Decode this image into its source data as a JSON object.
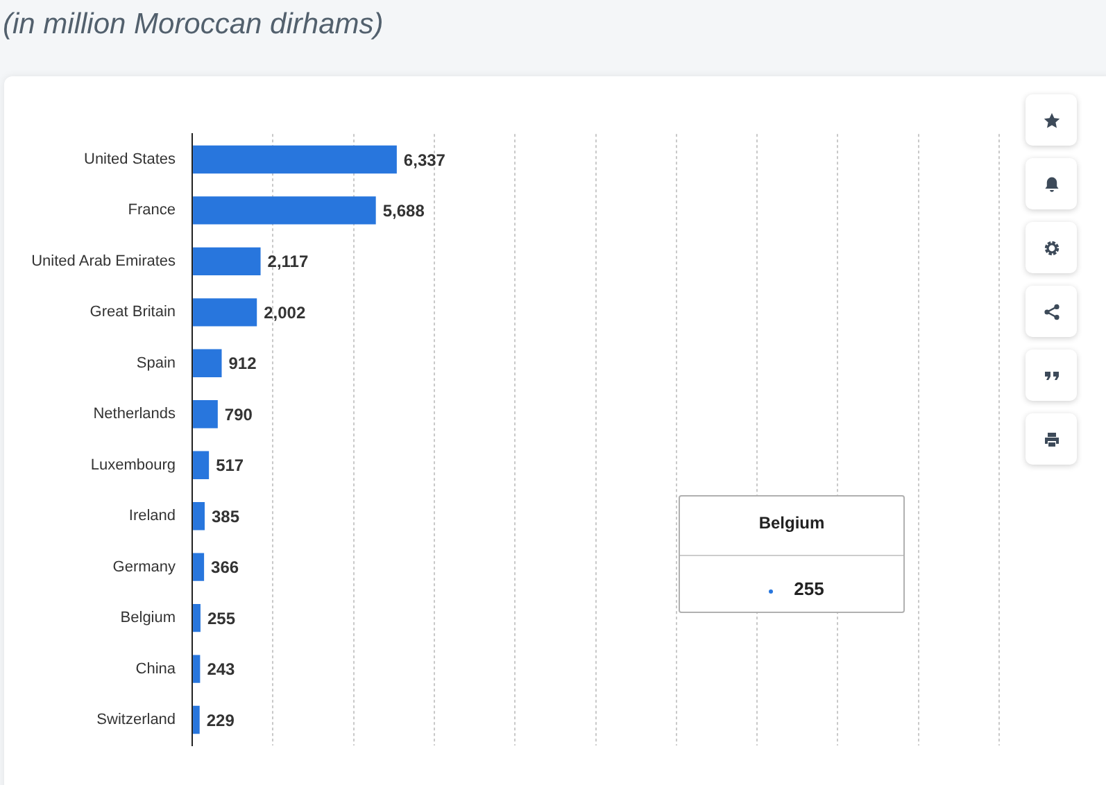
{
  "chart_data": {
    "type": "bar",
    "orientation": "horizontal",
    "subtitle": "(in million Moroccan dirhams)",
    "categories": [
      "United States",
      "France",
      "United Arab Emirates",
      "Great Britain",
      "Spain",
      "Netherlands",
      "Luxembourg",
      "Ireland",
      "Germany",
      "Belgium",
      "China",
      "Switzerland"
    ],
    "values": [
      6337,
      5688,
      2117,
      2002,
      912,
      790,
      517,
      385,
      366,
      255,
      243,
      229
    ],
    "color": "#2876dd",
    "value_labels": [
      "6,337",
      "5,688",
      "2,117",
      "2,002",
      "912",
      "790",
      "517",
      "385",
      "366",
      "255",
      "243",
      "229"
    ],
    "grid": "x",
    "tick_labels": "y",
    "xlim": [
      0,
      25000
    ],
    "xticks": [
      {
        "value": 0,
        "label": null
      },
      {
        "value": 2500,
        "label": null
      },
      {
        "value": 5000,
        "label": null
      },
      {
        "value": 7500,
        "label": null
      },
      {
        "value": 10000,
        "label": null
      },
      {
        "value": 12500,
        "label": null
      },
      {
        "value": 15000,
        "label": null
      },
      {
        "value": 17500,
        "label": null
      },
      {
        "value": 20000,
        "label": null
      },
      {
        "value": 22500,
        "label": null
      },
      {
        "value": 25000,
        "label": null
      }
    ],
    "annotations": [
      "Belgium",
      "255"
    ]
  }
}
